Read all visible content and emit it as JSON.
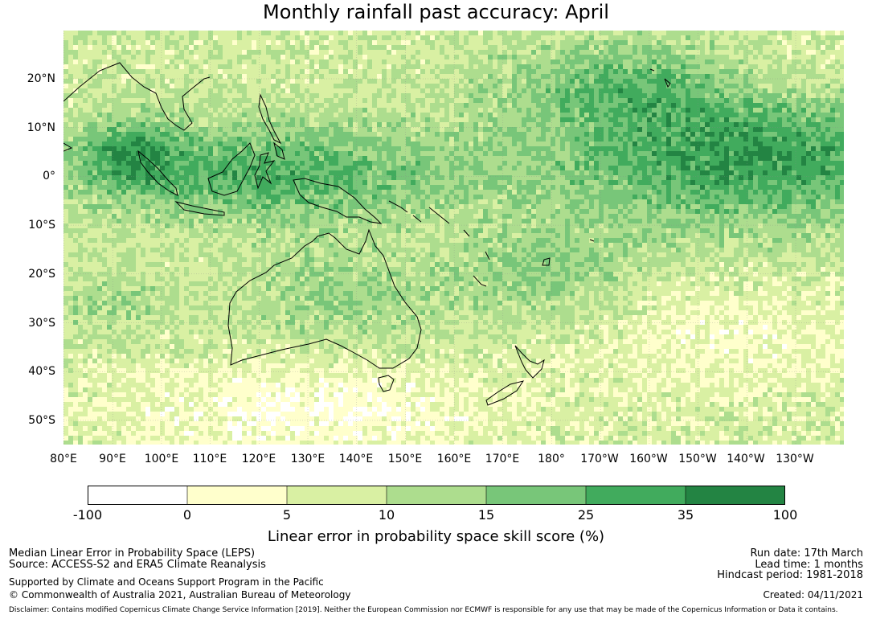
{
  "title": "Monthly rainfall past accuracy: April",
  "map": {
    "lat_labels": [
      "20°N",
      "10°N",
      "0°",
      "10°S",
      "20°S",
      "30°S",
      "40°S",
      "50°S"
    ],
    "lon_labels": [
      "80°E",
      "90°E",
      "100°E",
      "110°E",
      "120°E",
      "130°E",
      "140°E",
      "150°E",
      "160°E",
      "170°E",
      "180°",
      "170°W",
      "160°W",
      "150°W",
      "140°W",
      "130°W"
    ],
    "colors": [
      "#ffffff",
      "#ffffcc",
      "#d9f0a3",
      "#addd8e",
      "#78c679",
      "#41ab5d",
      "#238443"
    ]
  },
  "colorbar": {
    "ticks": [
      "-100",
      "0",
      "5",
      "10",
      "15",
      "25",
      "35",
      "100"
    ],
    "label": "Linear error in probability space skill score (%)"
  },
  "footer": {
    "left1": "Median Linear Error in Probability Space (LEPS)",
    "left2": "Source: ACCESS-S2 and ERA5 Climate Reanalysis",
    "left3": "Supported by Climate and Oceans Support Program in the Pacific",
    "left4": "© Commonwealth of Australia 2021, Australian Bureau of Meteorology",
    "right1": "Run date: 17th March",
    "right2": "Lead time: 1 months",
    "right3": "Hindcast period: 1981-2018",
    "right4": "Created: 04/11/2021",
    "disclaimer": "Disclaimer: Contains modified Copernicus Climate Change Service Information [2019]. Neither the European Commission nor ECMWF is responsible for any use that may be made of the Copernicus Information or Data it contains."
  }
}
